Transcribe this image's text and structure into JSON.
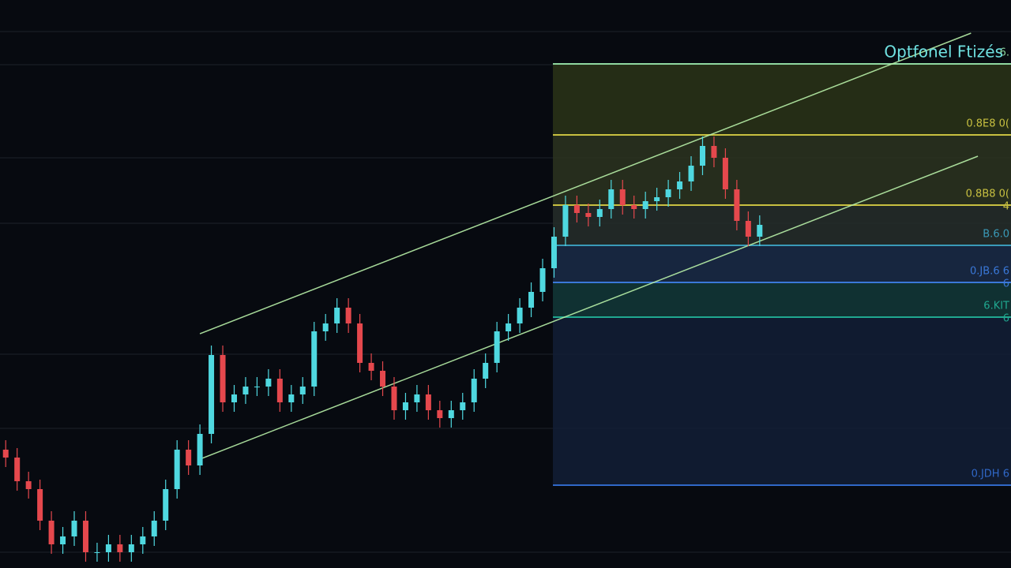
{
  "chart_data": {
    "type": "candlestick",
    "title": "Optfonel Ftizés",
    "open": [
      150,
      140,
      110,
      100,
      60,
      30,
      40,
      60,
      20,
      20,
      30,
      20,
      30,
      40,
      60,
      100,
      150,
      130,
      170,
      270,
      210,
      220,
      230,
      230,
      240,
      210,
      220,
      230,
      300,
      310,
      330,
      310,
      260,
      250,
      230,
      200,
      210,
      220,
      200,
      190,
      200,
      210,
      240,
      260,
      300,
      310,
      330,
      350,
      380,
      420,
      460,
      450,
      445,
      455,
      480,
      460,
      455,
      465,
      470,
      480,
      490,
      510,
      535,
      520,
      480,
      440,
      420
    ],
    "high": [
      162,
      152,
      122,
      112,
      72,
      52,
      72,
      72,
      32,
      42,
      42,
      42,
      52,
      72,
      112,
      162,
      162,
      182,
      282,
      282,
      232,
      242,
      242,
      252,
      252,
      232,
      242,
      312,
      322,
      342,
      342,
      322,
      272,
      262,
      242,
      222,
      232,
      232,
      212,
      212,
      222,
      252,
      272,
      312,
      322,
      342,
      362,
      392,
      432,
      472,
      472,
      462,
      467,
      492,
      492,
      472,
      477,
      482,
      492,
      502,
      522,
      547,
      547,
      532,
      492,
      452,
      447
    ],
    "low": [
      128,
      98,
      88,
      48,
      18,
      18,
      28,
      8,
      8,
      8,
      8,
      8,
      18,
      28,
      48,
      88,
      118,
      118,
      158,
      198,
      198,
      208,
      218,
      218,
      198,
      198,
      208,
      218,
      288,
      298,
      298,
      248,
      238,
      218,
      188,
      188,
      198,
      188,
      178,
      178,
      188,
      198,
      228,
      248,
      288,
      298,
      318,
      338,
      368,
      408,
      438,
      433,
      433,
      443,
      448,
      443,
      443,
      453,
      458,
      468,
      478,
      498,
      508,
      468,
      428,
      408,
      408
    ],
    "close": [
      140,
      110,
      100,
      60,
      30,
      40,
      60,
      20,
      20,
      30,
      20,
      30,
      40,
      60,
      100,
      150,
      130,
      170,
      270,
      210,
      220,
      230,
      230,
      240,
      210,
      220,
      230,
      300,
      310,
      330,
      310,
      260,
      250,
      230,
      200,
      210,
      220,
      200,
      190,
      200,
      210,
      240,
      260,
      300,
      310,
      330,
      350,
      380,
      420,
      460,
      450,
      445,
      455,
      480,
      460,
      455,
      465,
      470,
      480,
      490,
      510,
      535,
      520,
      480,
      440,
      420,
      435
    ],
    "up_color": "#4fd8e0",
    "down_color": "#e5484d",
    "xlim": [
      -0.5,
      88
    ],
    "ylim": [
      0,
      720
    ],
    "channel_lines": [
      {
        "x": [
          17,
          84.5
        ],
        "y": [
          297,
          678
        ],
        "color": "#b8f0a8"
      },
      {
        "x": [
          17,
          85.1
        ],
        "y": [
          138,
          522
        ],
        "color": "#b8f0a8"
      }
    ],
    "fib_start": 47.9,
    "fib_levels": [
      {
        "value": 639,
        "color": "#8fd8a0",
        "fill": "#2a3418",
        "labels": [
          "6."
        ]
      },
      {
        "value": 549,
        "color": "#c8c040",
        "fill": "#2c3420",
        "labels": [
          "0.8E8 0("
        ]
      },
      {
        "value": 460,
        "color": "#c8c040",
        "fill": "#262e2a",
        "labels": [
          "0.8B8 0(",
          "4"
        ]
      },
      {
        "value": 409,
        "color": "#3a9ab8",
        "fill": "#1a2c48",
        "labels": [
          "B.6.0"
        ]
      },
      {
        "value": 362,
        "color": "#3a78d8",
        "fill": "#123838",
        "labels": [
          "0.JB.6 6",
          "6"
        ]
      },
      {
        "value": 318,
        "color": "#20a890",
        "fill": "#121e36",
        "labels": [
          "6.KIT",
          "6"
        ]
      },
      {
        "value": 105,
        "color": "#3068c8",
        "labels": [
          "0.JDH 6"
        ]
      }
    ]
  }
}
